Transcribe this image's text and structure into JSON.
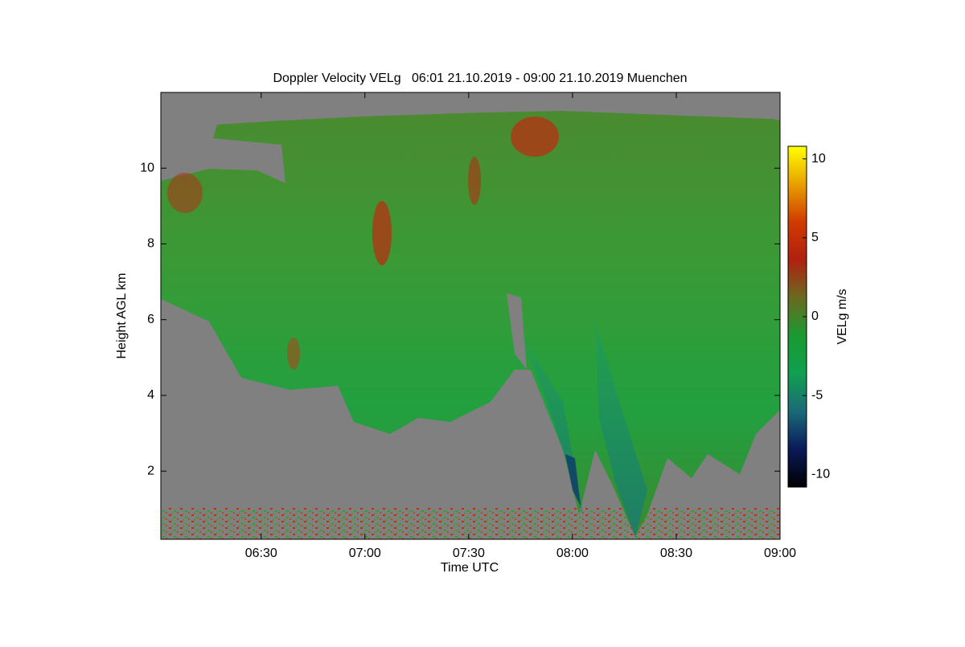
{
  "chart_data": {
    "type": "heatmap",
    "title": "Doppler Velocity VELg   06:01 21.10.2019 - 09:00 21.10.2019 Muenchen",
    "x_label": "Time UTC",
    "y_label": "Height AGL km",
    "xlim": [
      361,
      540
    ],
    "xticks": [
      {
        "value": 390,
        "label": "06:30"
      },
      {
        "value": 420,
        "label": "07:00"
      },
      {
        "value": 450,
        "label": "07:30"
      },
      {
        "value": 480,
        "label": "08:00"
      },
      {
        "value": 510,
        "label": "08:30"
      },
      {
        "value": 540,
        "label": "09:00"
      }
    ],
    "ylim": [
      0.2,
      12
    ],
    "yticks": [
      2,
      4,
      6,
      8,
      10
    ],
    "colorbar": {
      "label": "VELg m/s",
      "lim": [
        -10.8,
        10.8
      ],
      "ticks": [
        -10,
        -5,
        0,
        5,
        10
      ],
      "colors": [
        "#000000",
        "#0a1a5a",
        "#1a6a78",
        "#10a050",
        "#1a9a30",
        "#6a6a20",
        "#b02010",
        "#d03a00",
        "#e8a000",
        "#ffff00"
      ]
    }
  }
}
